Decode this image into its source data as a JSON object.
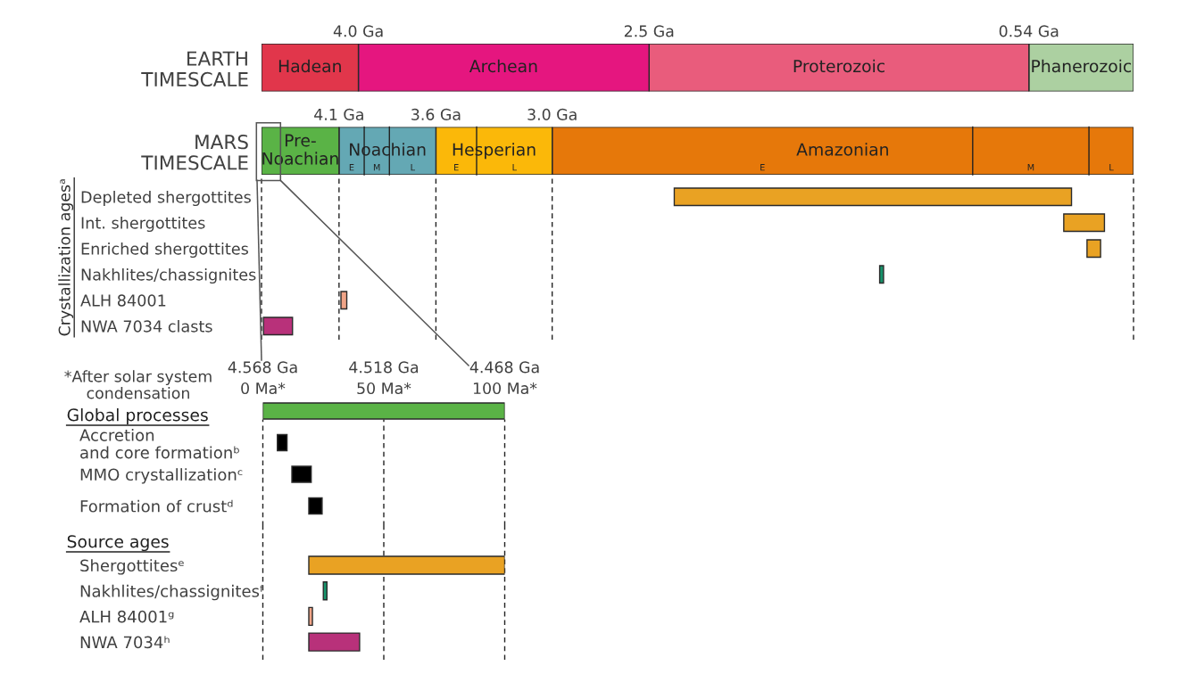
{
  "chart_data": [
    {
      "type": "bar",
      "orientation": "horizontal",
      "stacked": true,
      "categories": [
        "EARTH\nTIMESCALE"
      ],
      "series": [
        {
          "name": "Phanerozoic",
          "color": "#acd0a1",
          "values": [
            0.54
          ]
        },
        {
          "name": "Proterozoic",
          "color": "#e95c7c",
          "values": [
            1.96
          ]
        },
        {
          "name": "Archean",
          "color": "#e5167f",
          "values": [
            1.5
          ]
        },
        {
          "name": "Hadean",
          "color": "#e1364b",
          "values": [
            0.5
          ]
        }
      ],
      "xlim": [
        4.5,
        0
      ],
      "xticks": [
        {
          "value": 4.0,
          "label": "4.0 Ga"
        },
        {
          "value": 2.5,
          "label": "2.5 Ga"
        },
        {
          "value": 0.54,
          "label": "0.54 Ga"
        }
      ]
    },
    {
      "type": "bar",
      "orientation": "horizontal",
      "stacked": true,
      "categories": [
        "MARS\nTIMESCALE"
      ],
      "series": [
        {
          "name": "Amazonian",
          "color": "#e6780a",
          "values": [
            3.0
          ]
        },
        {
          "name": "Hesperian",
          "color": "#fbb809",
          "values": [
            0.6
          ]
        },
        {
          "name": "Noachian",
          "color": "#64a8b4",
          "values": [
            0.5
          ]
        },
        {
          "name": "Pre-\nNoachian",
          "color": "#5ab346",
          "values": [
            0.4
          ]
        }
      ],
      "xlim": [
        4.5,
        0
      ],
      "xticks": [
        {
          "value": 4.1,
          "label": "4.1 Ga"
        },
        {
          "value": 3.6,
          "label": "3.6 Ga"
        },
        {
          "value": 3.0,
          "label": "3.0 Ga"
        }
      ],
      "grid": "x",
      "ref_lines": [
        {
          "axis": "x",
          "value": 3.97
        },
        {
          "axis": "x",
          "value": 3.84
        },
        {
          "axis": "x",
          "value": 3.39
        },
        {
          "axis": "x",
          "value": 0.83
        },
        {
          "axis": "x",
          "value": 0.23
        }
      ],
      "annotations": [
        "E",
        "M",
        "L",
        "E",
        "L",
        "E",
        "M",
        "L"
      ]
    },
    {
      "type": "bar",
      "orientation": "horizontal",
      "ylabel": "Crystallization agesᵃ",
      "categories": [
        "Depleted shergottites",
        "Int. shergottites",
        "Enriched shergottites",
        "Nakhlites/chassignites",
        "ALH 84001",
        "NWA 7034 clasts"
      ],
      "base": [
        0.32,
        0.15,
        0.17,
        1.29,
        4.06,
        4.34
      ],
      "values": [
        2.05,
        0.21,
        0.07,
        0.02,
        0.03,
        0.15
      ],
      "colors": [
        "#e9a223",
        "#e9a223",
        "#e9a223",
        "#17936b",
        "#f0a487",
        "#b8317a"
      ],
      "xlim": [
        4.5,
        0
      ],
      "tick_labels": "y",
      "ref_lines": [
        {
          "axis": "x",
          "value": 4.5,
          "line_style": "dashed"
        },
        {
          "axis": "x",
          "value": 0,
          "line_style": "dashed"
        }
      ]
    },
    {
      "type": "bar",
      "orientation": "horizontal",
      "title": "Global processes",
      "categories": [
        null,
        "Accretion\nand core formationᵇ",
        "MMO crystallizationᶜ",
        "Formation of crustᵈ"
      ],
      "base": [
        0,
        6,
        12,
        19
      ],
      "values": [
        100,
        4,
        8,
        5.5
      ],
      "colors": [
        "#5ab346",
        "#000000",
        "#000000",
        "#000000"
      ],
      "xlim": [
        0,
        100
      ],
      "xticks": [
        {
          "value": 0,
          "label": "0 Ma*"
        },
        {
          "value": 50,
          "label": "50 Ma*"
        },
        {
          "value": 100,
          "label": "100 Ma*"
        }
      ],
      "grid": "x",
      "x2lim": [
        4.568,
        4.468
      ],
      "x2ticks": [
        {
          "value": 4.568,
          "label": "4.568 Ga"
        },
        {
          "value": 4.518,
          "label": "4.518 Ga"
        },
        {
          "value": 4.468,
          "label": "4.468 Ga"
        }
      ],
      "annotations": [
        "*After solar system\ncondensation"
      ]
    },
    {
      "type": "bar",
      "orientation": "horizontal",
      "title": "Source ages",
      "categories": [
        "Shergottitesᵉ",
        "Nakhlites/chassignitesᶠ",
        "ALH 84001ᵍ",
        "NWA 7034ʰ"
      ],
      "base": [
        19,
        25,
        19,
        19
      ],
      "values": [
        81,
        1.5,
        1.5,
        21
      ],
      "colors": [
        "#e9a223",
        "#17936b",
        "#f0a487",
        "#b8317a"
      ],
      "xlim": [
        0,
        100
      ],
      "xticks": [
        {
          "value": 0,
          "label": null
        },
        {
          "value": 50,
          "label": null
        },
        {
          "value": 100,
          "label": null
        }
      ],
      "grid": "x",
      "tick_labels": "y"
    }
  ]
}
